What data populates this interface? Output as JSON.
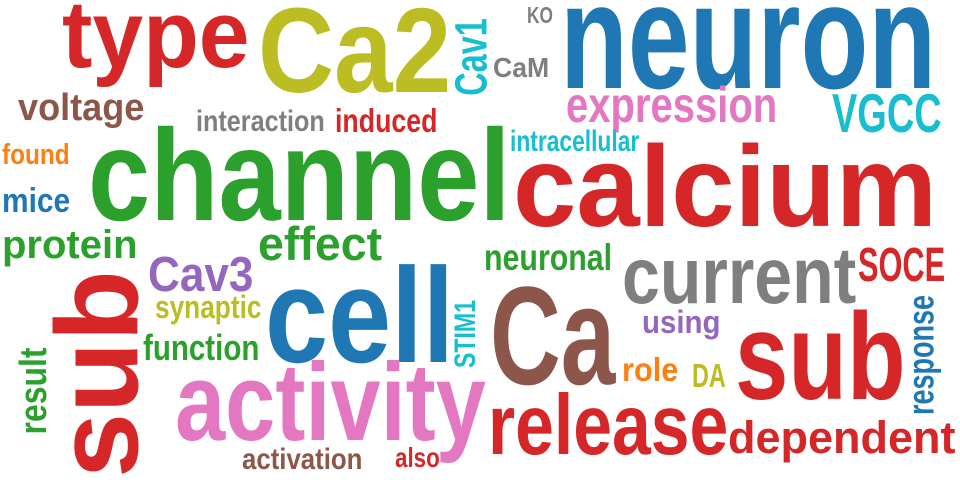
{
  "words": [
    {
      "text": "type",
      "color": "#d62728"
    },
    {
      "text": "Ca2",
      "color": "#bcbd22"
    },
    {
      "text": "Cav1",
      "color": "#17becf"
    },
    {
      "text": "KO",
      "color": "#7f7f7f"
    },
    {
      "text": "CaM",
      "color": "#7f7f7f"
    },
    {
      "text": "neuron",
      "color": "#1f77b4"
    },
    {
      "text": "voltage",
      "color": "#8c564b"
    },
    {
      "text": "interaction",
      "color": "#7f7f7f"
    },
    {
      "text": "induced",
      "color": "#d62728"
    },
    {
      "text": "expression",
      "color": "#e377c2"
    },
    {
      "text": "VGCC",
      "color": "#17becf"
    },
    {
      "text": "found",
      "color": "#ff7f0e"
    },
    {
      "text": "channel",
      "color": "#2ca02c"
    },
    {
      "text": "intracellular",
      "color": "#17becf"
    },
    {
      "text": "calcium",
      "color": "#d62728"
    },
    {
      "text": "mice",
      "color": "#1f77b4"
    },
    {
      "text": "protein",
      "color": "#2ca02c"
    },
    {
      "text": "effect",
      "color": "#2ca02c"
    },
    {
      "text": "neuronal",
      "color": "#2ca02c"
    },
    {
      "text": "current",
      "color": "#7f7f7f"
    },
    {
      "text": "SOCE",
      "color": "#d62728"
    },
    {
      "text": "Cav3",
      "color": "#9467bd"
    },
    {
      "text": "sub",
      "color": "#d62728"
    },
    {
      "text": "cell",
      "color": "#1f77b4"
    },
    {
      "text": "synaptic",
      "color": "#bcbd22"
    },
    {
      "text": "function",
      "color": "#2ca02c"
    },
    {
      "text": "STIM1",
      "color": "#17becf"
    },
    {
      "text": "Ca",
      "color": "#8c564b"
    },
    {
      "text": "using",
      "color": "#9467bd"
    },
    {
      "text": "role",
      "color": "#ff7f0e"
    },
    {
      "text": "DA",
      "color": "#bcbd22"
    },
    {
      "text": "sub",
      "color": "#d62728"
    },
    {
      "text": "response",
      "color": "#1f77b4"
    },
    {
      "text": "result",
      "color": "#2ca02c"
    },
    {
      "text": "activity",
      "color": "#e377c2"
    },
    {
      "text": "release",
      "color": "#d62728"
    },
    {
      "text": "dependent",
      "color": "#d62728"
    },
    {
      "text": "activation",
      "color": "#8c564b"
    },
    {
      "text": "also",
      "color": "#d62728"
    }
  ]
}
